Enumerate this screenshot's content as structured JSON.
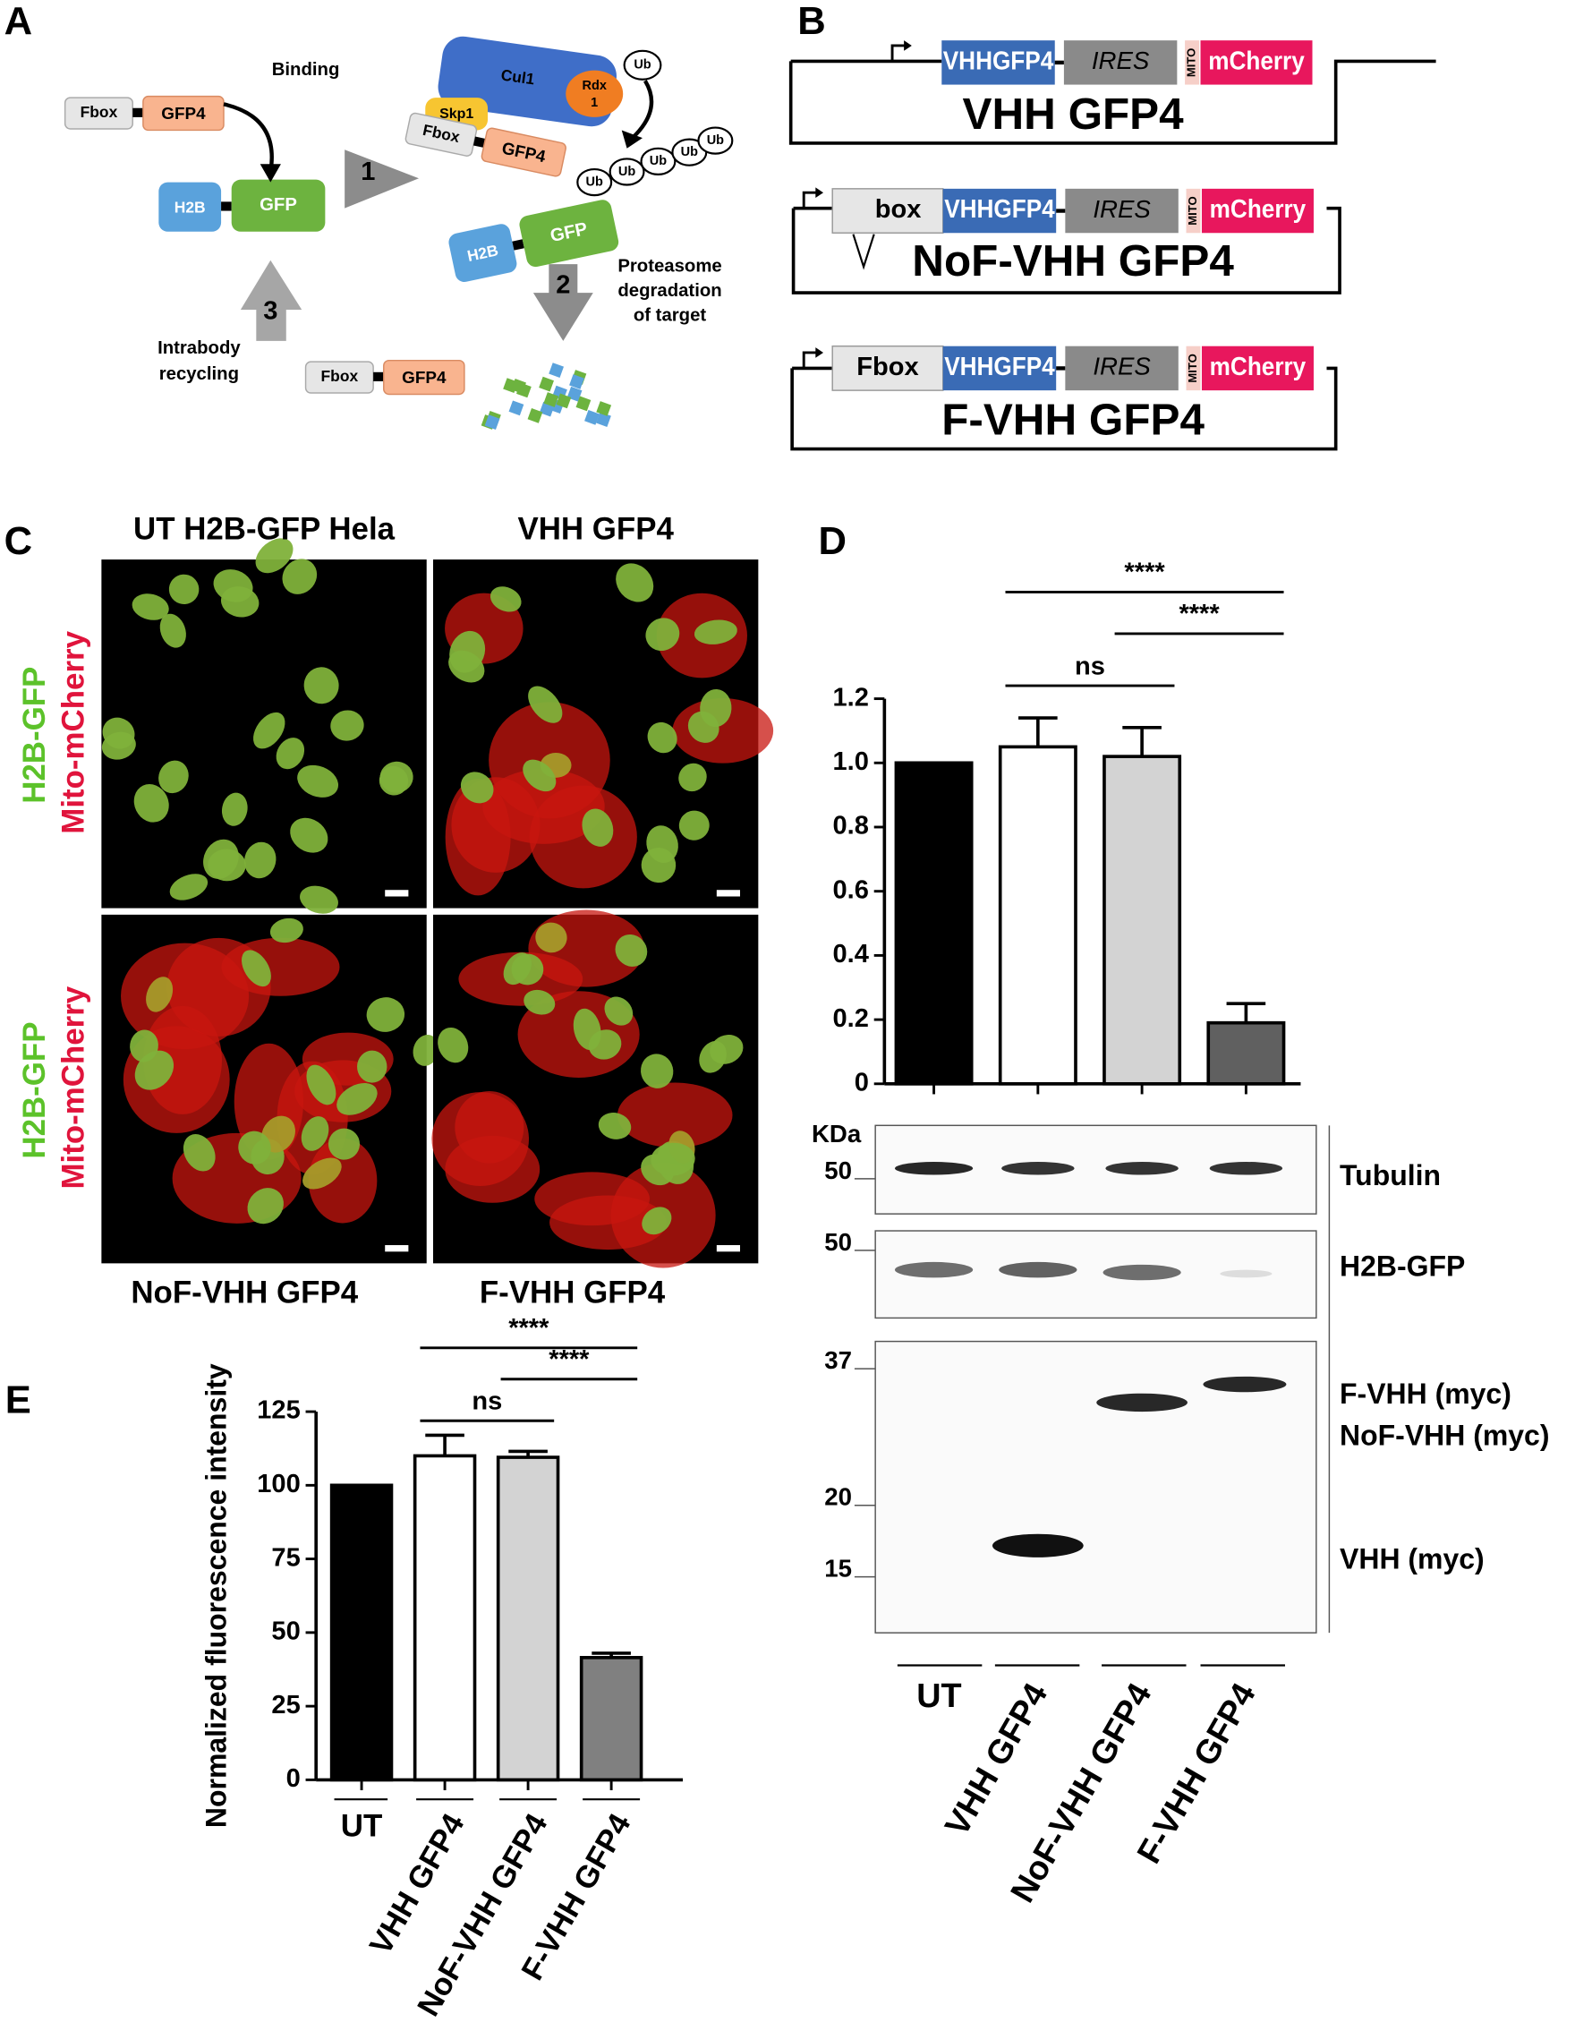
{
  "panel_labels": [
    "A",
    "B",
    "C",
    "D",
    "E"
  ],
  "panel_a": {
    "binding": "Binding",
    "fbox": "Fbox",
    "gfp4": "GFP4",
    "h2b": "H2B",
    "gfp": "GFP",
    "cul1": "Cul1",
    "rdx": [
      "Rdx",
      "1"
    ],
    "skp1": "Skp1",
    "ub": "Ub",
    "steps": [
      "1",
      "2",
      "3"
    ],
    "proteasome": [
      "Proteasome",
      "degradation",
      "of target"
    ],
    "recycling": [
      "Intrabody",
      "recycling"
    ]
  },
  "panel_b": {
    "constructs": [
      {
        "title": "VHH GFP4",
        "parts": [
          "VHHGFP4",
          "IRES",
          "MITO",
          "mCherry"
        ]
      },
      {
        "title": "NoF-VHH GFP4",
        "parts": [
          "box",
          "VHHGFP4",
          "IRES",
          "MITO",
          "mCherry"
        ]
      },
      {
        "title": "F-VHH GFP4",
        "parts": [
          "Fbox",
          "VHHGFP4",
          "IRES",
          "MITO",
          "mCherry"
        ]
      }
    ]
  },
  "panel_c": {
    "titles": [
      "UT H2B-GFP Hela",
      "VHH GFP4",
      "NoF-VHH GFP4",
      "F-VHH GFP4"
    ],
    "channel_green": "H2B-GFP",
    "channel_red": "Mito-mCherry"
  },
  "panel_d_blot": {
    "unit": "KDa",
    "markers": [
      50,
      50,
      37,
      20,
      15
    ],
    "bands": [
      "Tubulin",
      "H2B-GFP",
      "F-VHH (myc)",
      "NoF-VHH (myc)",
      "VHH (myc)"
    ]
  },
  "chart_data": [
    {
      "type": "bar",
      "categories": [
        "UT",
        "VHH GFP4",
        "NoF-VHH GFP4",
        "F-VHH GFP4"
      ],
      "values": [
        1,
        1.05,
        1.02,
        0.19
      ],
      "errors": [
        null,
        0.09,
        0.09,
        0.06
      ],
      "colors": [
        "#000000",
        "#ffffff",
        "#d3d3d3",
        "#606060"
      ],
      "ylim": [
        0,
        1.2
      ],
      "yticks": [
        0,
        0.2,
        0.4,
        0.6,
        0.8,
        {
          "value": 1,
          "label": "1.0"
        },
        1.2
      ],
      "annotations": [
        "****",
        "****",
        "ns"
      ]
    },
    {
      "type": "bar",
      "y_label": "Normalized fluorescence intensity",
      "categories": [
        "UT",
        "VHH GFP4",
        "NoF-VHH GFP4",
        "F-VHH GFP4"
      ],
      "values": [
        100,
        110,
        109.5,
        41.5
      ],
      "errors": [
        null,
        7,
        2,
        1.5
      ],
      "colors": [
        "#000000",
        "#ffffff",
        "#d3d3d3",
        "#808080"
      ],
      "ylim": [
        0,
        125
      ],
      "yticks": [
        0,
        25,
        50,
        75,
        100,
        125
      ],
      "annotations": [
        "****",
        "****",
        "ns"
      ]
    }
  ]
}
